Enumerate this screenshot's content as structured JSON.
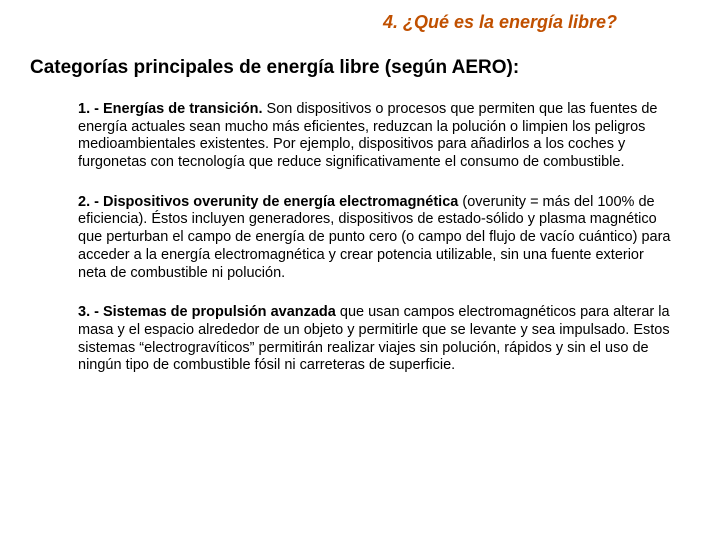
{
  "colors": {
    "section_title": "#c05000",
    "text": "#000000",
    "background": "#ffffff"
  },
  "typography": {
    "section_title_size": 18,
    "subtitle_size": 19,
    "body_size": 14.5,
    "family": "Arial"
  },
  "section_title": "4. ¿Qué es la energía libre?",
  "subtitle": "Categorías principales de energía libre (según AERO):",
  "items": [
    {
      "title": "1. - Energías de transición.",
      "body": " Son dispositivos o procesos que permiten que las fuentes de energía actuales sean mucho más eficientes, reduzcan la polución o limpien los peligros medioambientales existentes. Por ejemplo, dispositivos para añadirlos a los coches y furgonetas con tecnología que reduce significativamente el consumo de combustible."
    },
    {
      "title": "2. - Dispositivos overunity de energía electromagnética",
      "body": " (overunity = más del 100% de eficiencia). Éstos incluyen generadores, dispositivos de estado-sólido y plasma magnético que perturban el campo de energía de punto cero (o campo del flujo de vacío cuántico) para acceder a la energía electromagnética y crear potencia utilizable, sin una fuente exterior neta de combustible ni polución."
    },
    {
      "title": "3. - Sistemas de propulsión avanzada",
      "body": " que usan campos electromagnéticos para alterar la masa y el espacio alrededor de un objeto y permitirle que se levante y sea impulsado. Estos sistemas “electrogravíticos” permitirán realizar viajes sin polución, rápidos y sin el uso de ningún tipo de combustible fósil ni carreteras de superficie."
    }
  ]
}
